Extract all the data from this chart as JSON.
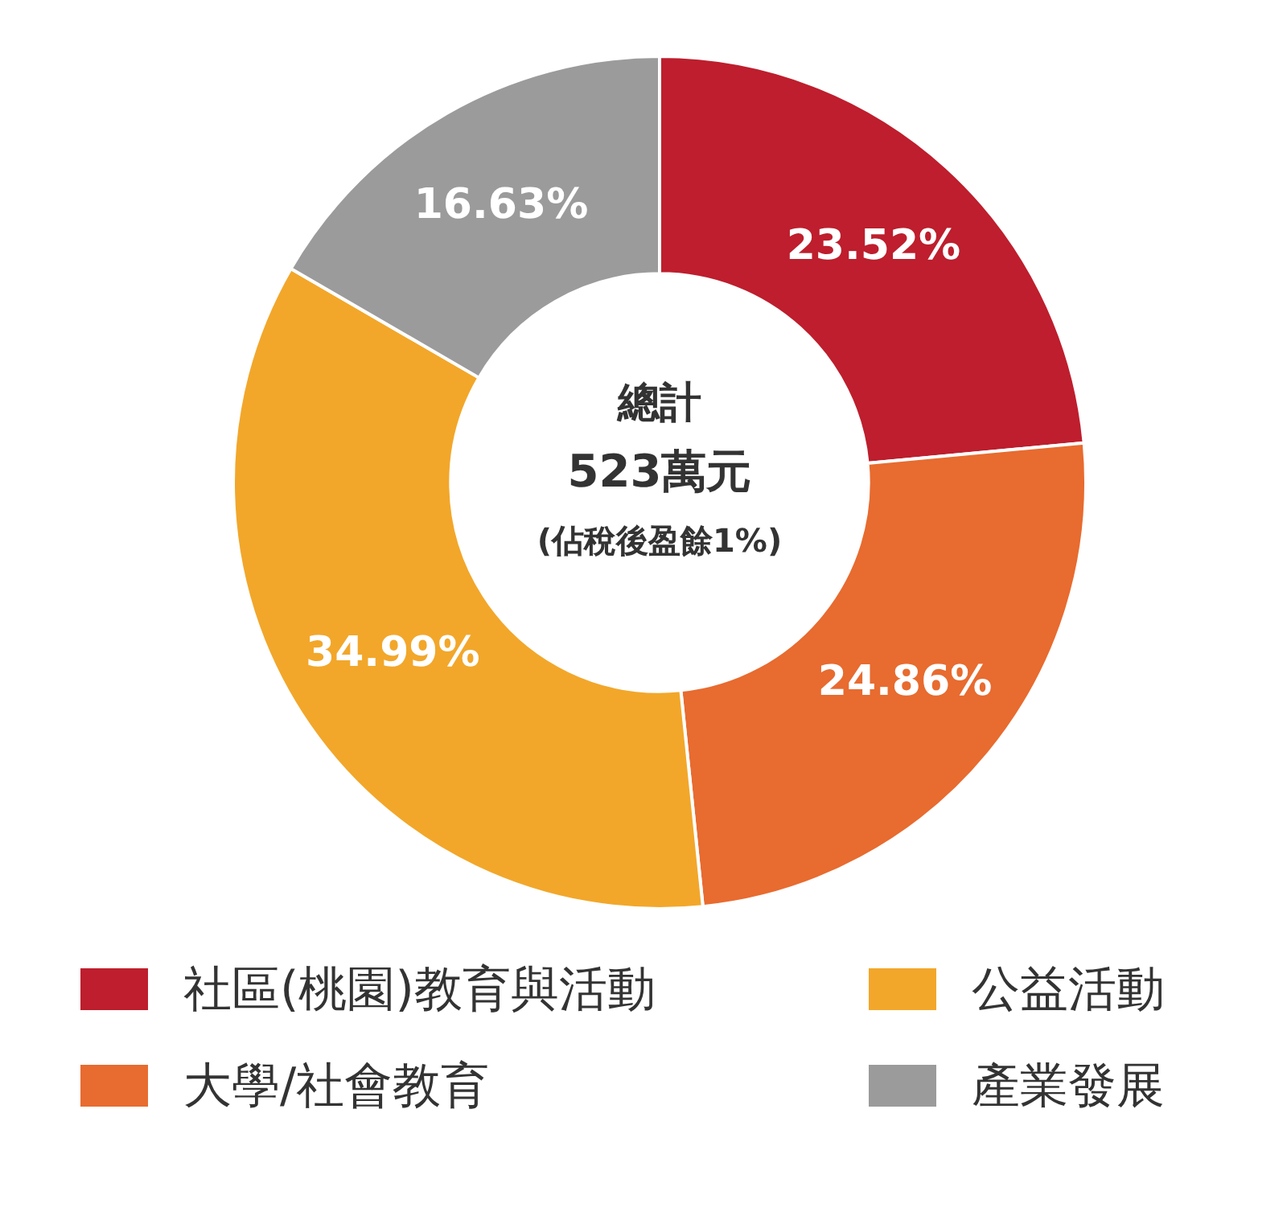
{
  "chart_data": {
    "type": "donut",
    "title": "總計",
    "subtitle": "523萬元",
    "annotations": [
      "(佔稅後盈餘1%)"
    ],
    "categories": [
      "社區(桃園)教育與活動",
      "大學/社會教育",
      "公益活動",
      "產業發展"
    ],
    "values": [
      23.52,
      24.86,
      34.99,
      16.63
    ],
    "value_labels": [
      "23.52%",
      "24.86%",
      "34.99%",
      "16.63%"
    ],
    "colors": [
      "#be1e2d",
      "#e86b2f",
      "#f2a72a",
      "#9b9b9b"
    ],
    "legend": "bottom"
  }
}
